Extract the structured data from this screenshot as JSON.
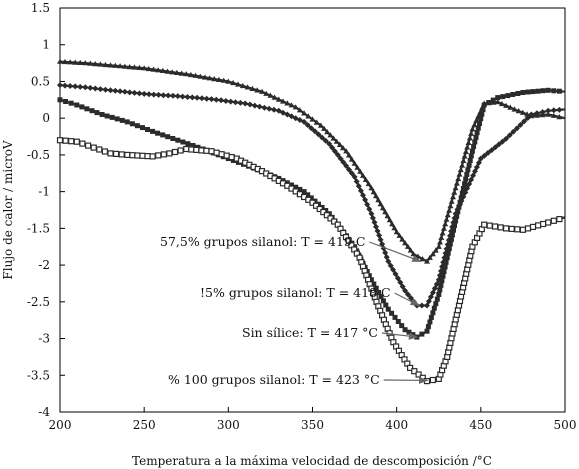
{
  "chart_data": {
    "type": "line",
    "xlabel": "Temperatura a la máxima velocidad de descomposición /°C",
    "ylabel": "Flujo de calor / microV",
    "xlim": [
      200,
      500
    ],
    "ylim": [
      -4,
      1.5
    ],
    "xticks": [
      200,
      250,
      300,
      350,
      400,
      450,
      500
    ],
    "yticks": [
      1.5,
      1,
      0.5,
      0,
      -0.5,
      -1,
      -1.5,
      -2,
      -2.5,
      -3,
      -3.5,
      -4
    ],
    "yticklabels": [
      "1.5",
      "1",
      "0.5",
      "0",
      "-0.5",
      "-1",
      "-1.5",
      "-2",
      "-2.5",
      "-3",
      "-3.5",
      "-4"
    ],
    "grid": false,
    "series": [
      {
        "marker": "triangle",
        "color": "#2b2b2b",
        "points": [
          [
            200,
            0.77
          ],
          [
            215,
            0.75
          ],
          [
            230,
            0.72
          ],
          [
            250,
            0.68
          ],
          [
            275,
            0.6
          ],
          [
            300,
            0.5
          ],
          [
            320,
            0.36
          ],
          [
            340,
            0.15
          ],
          [
            355,
            -0.1
          ],
          [
            370,
            -0.45
          ],
          [
            385,
            -0.95
          ],
          [
            400,
            -1.55
          ],
          [
            410,
            -1.85
          ],
          [
            418,
            -1.95
          ],
          [
            425,
            -1.75
          ],
          [
            435,
            -0.95
          ],
          [
            445,
            -0.15
          ],
          [
            452,
            0.2
          ],
          [
            460,
            0.22
          ],
          [
            470,
            0.12
          ],
          [
            480,
            0.03
          ],
          [
            490,
            0.05
          ],
          [
            500,
            0.0
          ]
        ]
      },
      {
        "marker": "diamond",
        "color": "#2b2b2b",
        "points": [
          [
            200,
            0.45
          ],
          [
            215,
            0.42
          ],
          [
            230,
            0.38
          ],
          [
            250,
            0.33
          ],
          [
            270,
            0.3
          ],
          [
            290,
            0.26
          ],
          [
            310,
            0.2
          ],
          [
            330,
            0.1
          ],
          [
            345,
            -0.05
          ],
          [
            360,
            -0.35
          ],
          [
            375,
            -0.8
          ],
          [
            385,
            -1.3
          ],
          [
            395,
            -1.95
          ],
          [
            405,
            -2.35
          ],
          [
            412,
            -2.55
          ],
          [
            418,
            -2.55
          ],
          [
            425,
            -2.2
          ],
          [
            435,
            -1.3
          ],
          [
            450,
            -0.55
          ],
          [
            465,
            -0.28
          ],
          [
            480,
            0.05
          ],
          [
            490,
            0.1
          ],
          [
            500,
            0.12
          ]
        ]
      },
      {
        "marker": "square",
        "color": "#2b2b2b",
        "points": [
          [
            200,
            0.25
          ],
          [
            210,
            0.18
          ],
          [
            225,
            0.05
          ],
          [
            240,
            -0.05
          ],
          [
            255,
            -0.18
          ],
          [
            270,
            -0.3
          ],
          [
            285,
            -0.42
          ],
          [
            300,
            -0.55
          ],
          [
            315,
            -0.68
          ],
          [
            330,
            -0.82
          ],
          [
            345,
            -1.0
          ],
          [
            360,
            -1.3
          ],
          [
            375,
            -1.75
          ],
          [
            385,
            -2.2
          ],
          [
            395,
            -2.6
          ],
          [
            405,
            -2.88
          ],
          [
            412,
            -2.98
          ],
          [
            418,
            -2.9
          ],
          [
            425,
            -2.4
          ],
          [
            435,
            -1.4
          ],
          [
            445,
            -0.45
          ],
          [
            452,
            0.18
          ],
          [
            460,
            0.28
          ],
          [
            475,
            0.35
          ],
          [
            490,
            0.38
          ],
          [
            500,
            0.36
          ]
        ]
      },
      {
        "marker": "open-square",
        "color": "#2b2b2b",
        "points": [
          [
            200,
            -0.3
          ],
          [
            210,
            -0.32
          ],
          [
            220,
            -0.4
          ],
          [
            230,
            -0.48
          ],
          [
            240,
            -0.5
          ],
          [
            255,
            -0.52
          ],
          [
            265,
            -0.48
          ],
          [
            275,
            -0.42
          ],
          [
            290,
            -0.45
          ],
          [
            305,
            -0.55
          ],
          [
            320,
            -0.72
          ],
          [
            335,
            -0.92
          ],
          [
            350,
            -1.15
          ],
          [
            365,
            -1.45
          ],
          [
            378,
            -1.9
          ],
          [
            388,
            -2.5
          ],
          [
            398,
            -3.05
          ],
          [
            408,
            -3.4
          ],
          [
            418,
            -3.58
          ],
          [
            425,
            -3.55
          ],
          [
            430,
            -3.25
          ],
          [
            437,
            -2.55
          ],
          [
            445,
            -1.75
          ],
          [
            452,
            -1.45
          ],
          [
            465,
            -1.5
          ],
          [
            475,
            -1.52
          ],
          [
            490,
            -1.42
          ],
          [
            500,
            -1.35
          ]
        ]
      }
    ],
    "annotations": [
      {
        "text": "57,5% grupos silanol: T = 419 C",
        "target": [
          419,
          -1.95
        ]
      },
      {
        "text": "!5% grupos silanol: T = 418 C",
        "target": [
          418,
          -2.55
        ]
      },
      {
        "text": "Sin sílice: T = 417 °C",
        "target": [
          417,
          -2.98
        ]
      },
      {
        "text": "% 100 grupos silanol: T =  423 °C",
        "target": [
          423,
          -3.57
        ]
      }
    ]
  }
}
